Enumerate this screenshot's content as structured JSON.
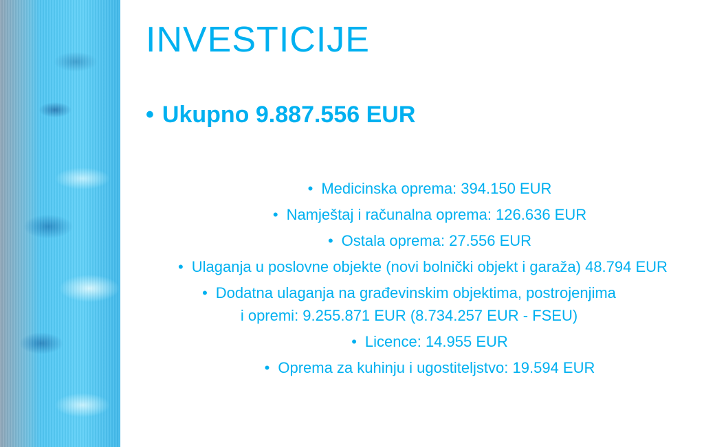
{
  "slide": {
    "title": "INVESTICIJE",
    "total": "Ukupno 9.887.556 EUR",
    "items": [
      "Medicinska oprema: 394.150 EUR",
      "Namještaj i računalna oprema: 126.636 EUR",
      "Ostala oprema: 27.556 EUR",
      "Ulaganja u poslovne objekte (novi bolnički objekt i garaža) 48.794 EUR",
      "Dodatna ulaganja na građevinskim objektima, postrojenjima i opremi: 9.255.871 EUR (8.734.257 EUR - FSEU)",
      "Licence: 14.955 EUR",
      "Oprema za kuhinju i ugostiteljstvo: 19.594 EUR"
    ],
    "bullet": "•"
  },
  "colors": {
    "accent": "#00b0f0"
  },
  "image": "blue-abstract-decorative-panel"
}
